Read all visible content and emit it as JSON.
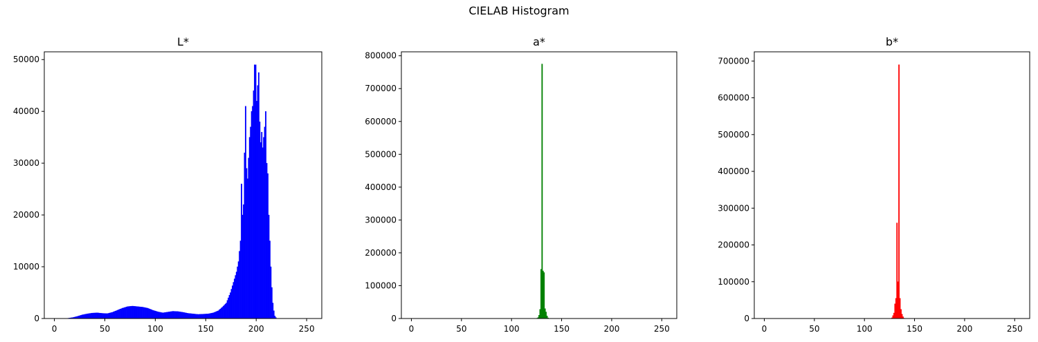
{
  "figure": {
    "suptitle": "CIELAB Histogram"
  },
  "chart_data": [
    {
      "type": "bar",
      "title": "L*",
      "xlabel": "",
      "ylabel": "",
      "xlim": [
        -10,
        265
      ],
      "ylim": [
        0,
        51500
      ],
      "xticks": [
        0,
        50,
        100,
        150,
        200,
        250
      ],
      "yticks": [
        0,
        10000,
        20000,
        30000,
        40000,
        50000
      ],
      "grid": false,
      "color": "#0000ff",
      "anchor_bins": [
        [
          8,
          0
        ],
        [
          13,
          50
        ],
        [
          18,
          200
        ],
        [
          22,
          400
        ],
        [
          27,
          700
        ],
        [
          32,
          900
        ],
        [
          37,
          1050
        ],
        [
          42,
          1100
        ],
        [
          47,
          1000
        ],
        [
          52,
          950
        ],
        [
          57,
          1200
        ],
        [
          62,
          1600
        ],
        [
          67,
          2000
        ],
        [
          72,
          2300
        ],
        [
          77,
          2400
        ],
        [
          82,
          2300
        ],
        [
          87,
          2200
        ],
        [
          92,
          2000
        ],
        [
          97,
          1600
        ],
        [
          102,
          1300
        ],
        [
          107,
          1100
        ],
        [
          112,
          1250
        ],
        [
          117,
          1400
        ],
        [
          122,
          1350
        ],
        [
          127,
          1200
        ],
        [
          132,
          1000
        ],
        [
          137,
          900
        ],
        [
          142,
          800
        ],
        [
          147,
          850
        ],
        [
          152,
          900
        ],
        [
          157,
          1100
        ],
        [
          162,
          1500
        ],
        [
          166,
          2200
        ],
        [
          170,
          3000
        ],
        [
          174,
          5000
        ],
        [
          177,
          7000
        ],
        [
          180,
          9000
        ],
        [
          182,
          11000
        ],
        [
          184,
          15000
        ],
        [
          185,
          26000
        ],
        [
          186,
          20000
        ],
        [
          187,
          22000
        ],
        [
          188,
          32000
        ],
        [
          189,
          41000
        ],
        [
          190,
          29000
        ],
        [
          191,
          27000
        ],
        [
          192,
          31000
        ],
        [
          193,
          35000
        ],
        [
          194,
          37000
        ],
        [
          195,
          40000
        ],
        [
          196,
          41000
        ],
        [
          197,
          44000
        ],
        [
          198,
          49000
        ],
        [
          199,
          49000
        ],
        [
          200,
          42000
        ],
        [
          201,
          45000
        ],
        [
          202,
          47500
        ],
        [
          203,
          38000
        ],
        [
          204,
          34000
        ],
        [
          205,
          36000
        ],
        [
          206,
          33000
        ],
        [
          207,
          35000
        ],
        [
          208,
          37000
        ],
        [
          209,
          40000
        ],
        [
          210,
          30000
        ],
        [
          211,
          28000
        ],
        [
          212,
          20000
        ],
        [
          213,
          15000
        ],
        [
          214,
          10000
        ],
        [
          215,
          6000
        ],
        [
          216,
          3000
        ],
        [
          217,
          1500
        ],
        [
          218,
          500
        ],
        [
          219,
          200
        ],
        [
          220,
          0
        ]
      ]
    },
    {
      "type": "bar",
      "title": "a*",
      "xlabel": "",
      "ylabel": "",
      "xlim": [
        -10,
        265
      ],
      "ylim": [
        0,
        812000
      ],
      "xticks": [
        0,
        50,
        100,
        150,
        200,
        250
      ],
      "yticks": [
        0,
        100000,
        200000,
        300000,
        400000,
        500000,
        600000,
        700000,
        800000
      ],
      "grid": false,
      "color": "#008000",
      "anchor_bins": [
        [
          124,
          0
        ],
        [
          125,
          1000
        ],
        [
          126,
          3000
        ],
        [
          127,
          10000
        ],
        [
          128,
          28000
        ],
        [
          129,
          150000
        ],
        [
          130,
          775000
        ],
        [
          131,
          145000
        ],
        [
          132,
          140000
        ],
        [
          133,
          30000
        ],
        [
          134,
          20000
        ],
        [
          135,
          8000
        ],
        [
          136,
          2000
        ],
        [
          137,
          500
        ],
        [
          138,
          0
        ]
      ]
    },
    {
      "type": "bar",
      "title": "b*",
      "xlabel": "",
      "ylabel": "",
      "xlim": [
        -10,
        265
      ],
      "ylim": [
        0,
        725000
      ],
      "xticks": [
        0,
        50,
        100,
        150,
        200,
        250
      ],
      "yticks": [
        0,
        100000,
        200000,
        300000,
        400000,
        500000,
        600000,
        700000
      ],
      "grid": false,
      "color": "#ff0000",
      "anchor_bins": [
        [
          126,
          0
        ],
        [
          127,
          2000
        ],
        [
          128,
          8000
        ],
        [
          129,
          15000
        ],
        [
          130,
          40000
        ],
        [
          131,
          55000
        ],
        [
          132,
          260000
        ],
        [
          133,
          100000
        ],
        [
          134,
          690000
        ],
        [
          135,
          55000
        ],
        [
          136,
          25000
        ],
        [
          137,
          12000
        ],
        [
          138,
          5000
        ],
        [
          139,
          1000
        ],
        [
          140,
          0
        ]
      ]
    }
  ]
}
